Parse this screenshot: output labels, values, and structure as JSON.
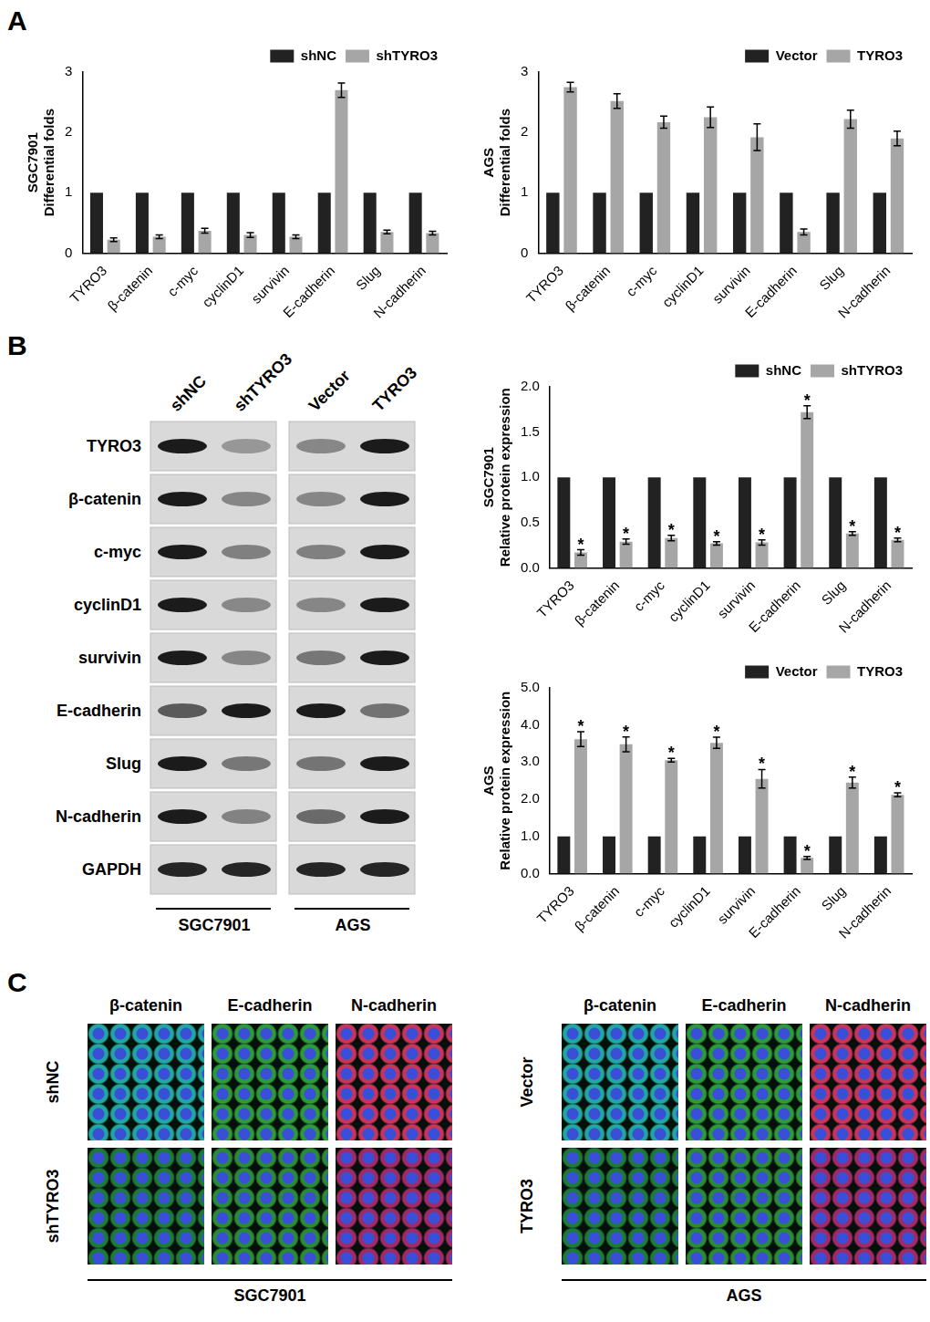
{
  "panel_letters": [
    "A",
    "B",
    "C"
  ],
  "chart_data": [
    {
      "type": "bar",
      "y_label": [
        "SGC7901",
        "Differential folds"
      ],
      "categories": [
        "TYRO3",
        "β-catenin",
        "c-myc",
        "cyclinD1",
        "survivin",
        "E-cadherin",
        "Slug",
        "N-cadherin"
      ],
      "series": [
        {
          "name": "shNC",
          "color": "#222222",
          "values": [
            1,
            1,
            1,
            1,
            1,
            1,
            1,
            1
          ]
        },
        {
          "name": "shTYRO3",
          "color": "#a6a6a6",
          "values": [
            0.22,
            0.27,
            0.37,
            0.3,
            0.27,
            2.7,
            0.35,
            0.33
          ],
          "errors": [
            0.03,
            0.03,
            0.04,
            0.04,
            0.03,
            0.12,
            0.03,
            0.03
          ]
        }
      ],
      "ylim": [
        0,
        3
      ],
      "yticks": [
        0,
        1,
        2,
        3
      ],
      "grid": false,
      "legend": "top"
    },
    {
      "type": "bar",
      "y_label": [
        "AGS",
        "Differential folds"
      ],
      "categories": [
        "TYRO3",
        "β-catenin",
        "c-myc",
        "cyclinD1",
        "survivin",
        "E-cadherin",
        "Slug",
        "N-cadherin"
      ],
      "series": [
        {
          "name": "Vector",
          "color": "#222222",
          "values": [
            1,
            1,
            1,
            1,
            1,
            1,
            1,
            1
          ]
        },
        {
          "name": "TYRO3",
          "color": "#a6a6a6",
          "values": [
            2.75,
            2.52,
            2.17,
            2.25,
            1.92,
            0.35,
            2.22,
            1.9
          ],
          "errors": [
            0.08,
            0.12,
            0.1,
            0.17,
            0.22,
            0.05,
            0.15,
            0.12
          ]
        }
      ],
      "ylim": [
        0,
        3
      ],
      "yticks": [
        0,
        1,
        2,
        3
      ],
      "grid": false,
      "legend": "top"
    },
    {
      "type": "bar",
      "y_label": [
        "SGC7901",
        "Relative protein expression"
      ],
      "categories": [
        "TYRO3",
        "β-catenin",
        "c-myc",
        "cyclinD1",
        "survivin",
        "E-cadherin",
        "Slug",
        "N-cadherin"
      ],
      "series": [
        {
          "name": "shNC",
          "color": "#222222",
          "values": [
            1,
            1,
            1,
            1,
            1,
            1,
            1,
            1
          ]
        },
        {
          "name": "shTYRO3",
          "color": "#a6a6a6",
          "values": [
            0.17,
            0.29,
            0.33,
            0.27,
            0.28,
            1.72,
            0.38,
            0.31
          ],
          "errors": [
            0.03,
            0.03,
            0.03,
            0.02,
            0.03,
            0.07,
            0.02,
            0.02
          ],
          "annotation": "*"
        }
      ],
      "ylim": [
        0,
        2
      ],
      "yticks": [
        {
          "value": 0,
          "label": "0.0"
        },
        {
          "value": 0.5,
          "label": "0.5"
        },
        {
          "value": 1,
          "label": "1.0"
        },
        {
          "value": 1.5,
          "label": "1.5"
        },
        {
          "value": 2,
          "label": "2.0"
        }
      ],
      "grid": false,
      "legend": "top"
    },
    {
      "type": "bar",
      "y_label": [
        "AGS",
        "Relative protein expression"
      ],
      "categories": [
        "TYRO3",
        "β-catenin",
        "c-myc",
        "cyclinD1",
        "survivin",
        "E-cadherin",
        "Slug",
        "N-cadherin"
      ],
      "series": [
        {
          "name": "Vector",
          "color": "#222222",
          "values": [
            1,
            1,
            1,
            1,
            1,
            1,
            1,
            1
          ]
        },
        {
          "name": "TYRO3",
          "color": "#a6a6a6",
          "values": [
            3.62,
            3.48,
            3.05,
            3.52,
            2.55,
            0.42,
            2.45,
            2.12
          ],
          "errors": [
            0.2,
            0.2,
            0.05,
            0.15,
            0.25,
            0.04,
            0.15,
            0.05
          ],
          "annotation": "*"
        }
      ],
      "ylim": [
        0,
        5
      ],
      "yticks": [
        {
          "value": 0,
          "label": "0.0"
        },
        {
          "value": 1,
          "label": "1.0"
        },
        {
          "value": 2,
          "label": "2.0"
        },
        {
          "value": 3,
          "label": "3.0"
        },
        {
          "value": 4,
          "label": "4.0"
        },
        {
          "value": 5,
          "label": "5.0"
        }
      ],
      "grid": false,
      "legend": "top"
    }
  ],
  "blot": {
    "columns": [
      "shNC",
      "shTYRO3",
      "Vector",
      "TYRO3"
    ],
    "rows": [
      "TYRO3",
      "β-catenin",
      "c-myc",
      "cyclinD1",
      "survivin",
      "E-cadherin",
      "Slug",
      "N-cadherin",
      "GAPDH"
    ],
    "groups": [
      "SGC7901",
      "AGS"
    ]
  },
  "images": {
    "columns": [
      "β-catenin",
      "E-cadherin",
      "N-cadherin"
    ],
    "groups": [
      {
        "name": "SGC7901",
        "rows": [
          "shNC",
          "shTYRO3"
        ]
      },
      {
        "name": "AGS",
        "rows": [
          "Vector",
          "TYRO3"
        ]
      }
    ]
  }
}
